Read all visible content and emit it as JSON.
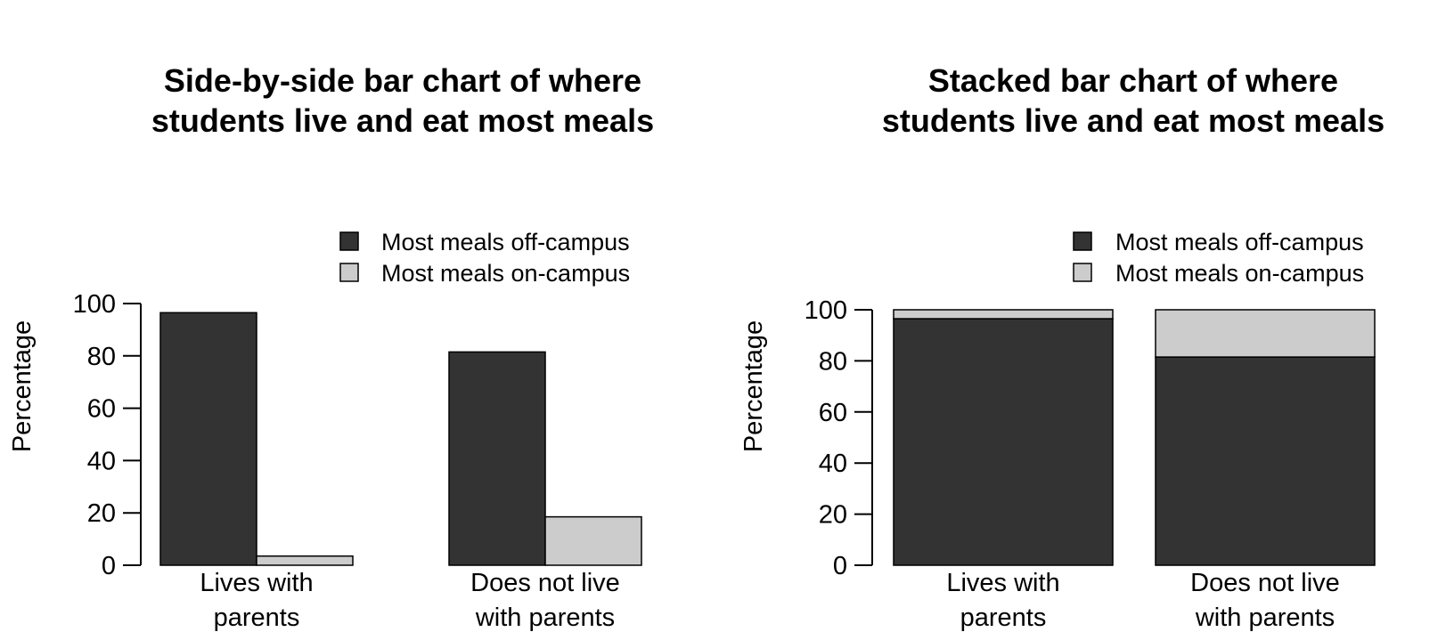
{
  "colors": {
    "off_campus": "#333333",
    "on_campus": "#cccccc",
    "outline": "#000000"
  },
  "chart_data": [
    {
      "type": "bar",
      "mode": "grouped",
      "title": [
        "Side-by-side bar chart of where",
        "students live and eat most meals"
      ],
      "xlabel": "",
      "ylabel": "Percentage",
      "ylim": [
        0,
        100
      ],
      "yticks": [
        0,
        20,
        40,
        60,
        80,
        100
      ],
      "categories": [
        [
          "Lives with",
          "parents"
        ],
        [
          "Does not live",
          "with parents"
        ]
      ],
      "legend": {
        "position": "top-right"
      },
      "series": [
        {
          "name": "Most meals off-campus",
          "color": "#333333",
          "values": [
            96.5,
            81.5
          ]
        },
        {
          "name": "Most meals on-campus",
          "color": "#cccccc",
          "values": [
            3.5,
            18.5
          ]
        }
      ]
    },
    {
      "type": "bar",
      "mode": "stacked",
      "title": [
        "Stacked bar chart of where",
        "students live and eat most meals"
      ],
      "xlabel": "",
      "ylabel": "Percentage",
      "ylim": [
        0,
        100
      ],
      "yticks": [
        0,
        20,
        40,
        60,
        80,
        100
      ],
      "categories": [
        [
          "Lives with",
          "parents"
        ],
        [
          "Does not live",
          "with parents"
        ]
      ],
      "legend": {
        "position": "top-right"
      },
      "series": [
        {
          "name": "Most meals off-campus",
          "color": "#333333",
          "values": [
            96.5,
            81.5
          ]
        },
        {
          "name": "Most meals on-campus",
          "color": "#cccccc",
          "values": [
            3.5,
            18.5
          ]
        }
      ]
    }
  ]
}
